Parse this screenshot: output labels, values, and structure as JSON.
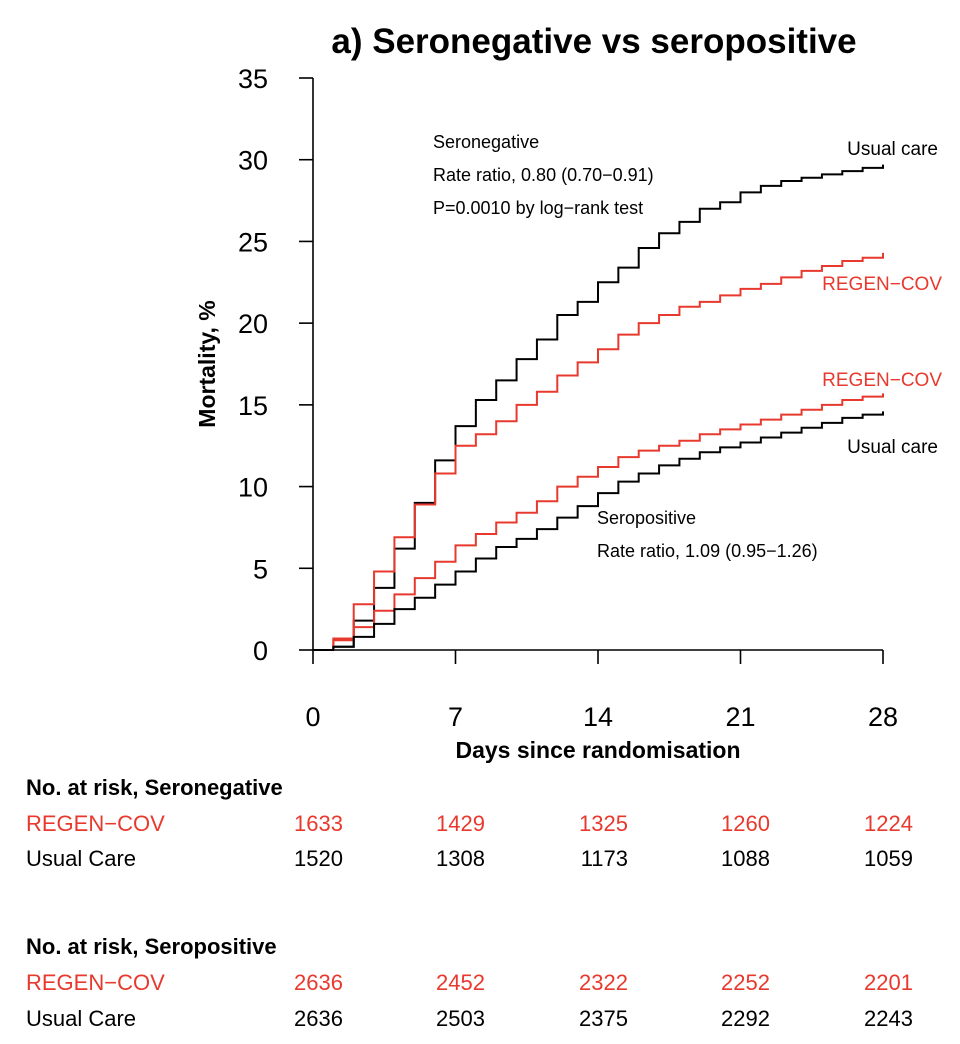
{
  "chart_data": {
    "type": "line",
    "step": true,
    "title": "a) Seronegative vs seropositive",
    "xlabel": "Days since randomisation",
    "ylabel": "Mortality, %",
    "xlim": [
      0,
      28
    ],
    "ylim": [
      0,
      35
    ],
    "xticks": [
      0,
      7,
      14,
      21,
      28
    ],
    "yticks": [
      0,
      5,
      10,
      15,
      20,
      25,
      30,
      35
    ],
    "grid": false,
    "colors": {
      "regen": "#e8392e",
      "usual": "#000000"
    },
    "days": [
      0,
      1,
      2,
      3,
      4,
      5,
      6,
      7,
      8,
      9,
      10,
      11,
      12,
      13,
      14,
      15,
      16,
      17,
      18,
      19,
      20,
      21,
      22,
      23,
      24,
      25,
      26,
      27,
      28
    ],
    "series": [
      {
        "name": "Usual care",
        "group": "Seronegative",
        "color_key": "usual",
        "values": [
          0,
          0.2,
          1.8,
          3.8,
          6.2,
          9.0,
          11.6,
          13.7,
          15.3,
          16.5,
          17.8,
          19.0,
          20.5,
          21.3,
          22.5,
          23.4,
          24.6,
          25.5,
          26.2,
          27.0,
          27.4,
          28.0,
          28.4,
          28.7,
          28.9,
          29.1,
          29.3,
          29.5,
          29.7
        ]
      },
      {
        "name": "REGEN−COV",
        "group": "Seronegative",
        "color_key": "regen",
        "values": [
          0,
          0.7,
          2.8,
          4.8,
          6.9,
          8.9,
          10.8,
          12.5,
          13.2,
          14.0,
          15.0,
          15.8,
          16.8,
          17.6,
          18.4,
          19.3,
          20.0,
          20.5,
          21.0,
          21.3,
          21.7,
          22.1,
          22.4,
          22.8,
          23.2,
          23.5,
          23.8,
          24.0,
          24.3
        ]
      },
      {
        "name": "REGEN−COV",
        "group": "Seropositive",
        "color_key": "regen",
        "values": [
          0,
          0.6,
          1.4,
          2.4,
          3.4,
          4.4,
          5.4,
          6.4,
          7.1,
          7.8,
          8.4,
          9.1,
          10.0,
          10.6,
          11.2,
          11.8,
          12.2,
          12.5,
          12.8,
          13.2,
          13.5,
          13.8,
          14.1,
          14.4,
          14.7,
          15.0,
          15.3,
          15.5,
          15.7
        ]
      },
      {
        "name": "Usual care",
        "group": "Seropositive",
        "color_key": "usual",
        "values": [
          0,
          0.2,
          0.8,
          1.6,
          2.5,
          3.2,
          4.0,
          4.8,
          5.6,
          6.3,
          6.8,
          7.4,
          8.1,
          8.8,
          9.6,
          10.3,
          10.8,
          11.3,
          11.7,
          12.1,
          12.4,
          12.7,
          13.0,
          13.3,
          13.6,
          13.9,
          14.2,
          14.4,
          14.6
        ]
      }
    ],
    "labels": {
      "usual_seroneg": "Usual care",
      "regen_seroneg": "REGEN−COV",
      "regen_seropos": "REGEN−COV",
      "usual_seropos": "Usual care"
    },
    "annotations": {
      "seroneg": [
        "Seronegative",
        "Rate ratio, 0.80 (0.70−0.91)",
        "P=0.0010 by log−rank test"
      ],
      "seropos": [
        "Seropositive",
        "Rate ratio, 1.09 (0.95−1.26)"
      ]
    },
    "risk_tables": [
      {
        "heading": "No. at risk, Seronegative",
        "rows": [
          {
            "label": "REGEN−COV",
            "color_key": "regen",
            "values": [
              "1633",
              "1429",
              "1325",
              "1260",
              "1224"
            ]
          },
          {
            "label": "Usual Care",
            "color_key": "usual",
            "values": [
              "1520",
              "1308",
              "1173",
              "1088",
              "1059"
            ]
          }
        ]
      },
      {
        "heading": "No. at risk, Seropositive",
        "rows": [
          {
            "label": "REGEN−COV",
            "color_key": "regen",
            "values": [
              "2636",
              "2452",
              "2322",
              "2252",
              "2201"
            ]
          },
          {
            "label": "Usual Care",
            "color_key": "usual",
            "values": [
              "2636",
              "2503",
              "2375",
              "2292",
              "2243"
            ]
          }
        ]
      }
    ]
  }
}
